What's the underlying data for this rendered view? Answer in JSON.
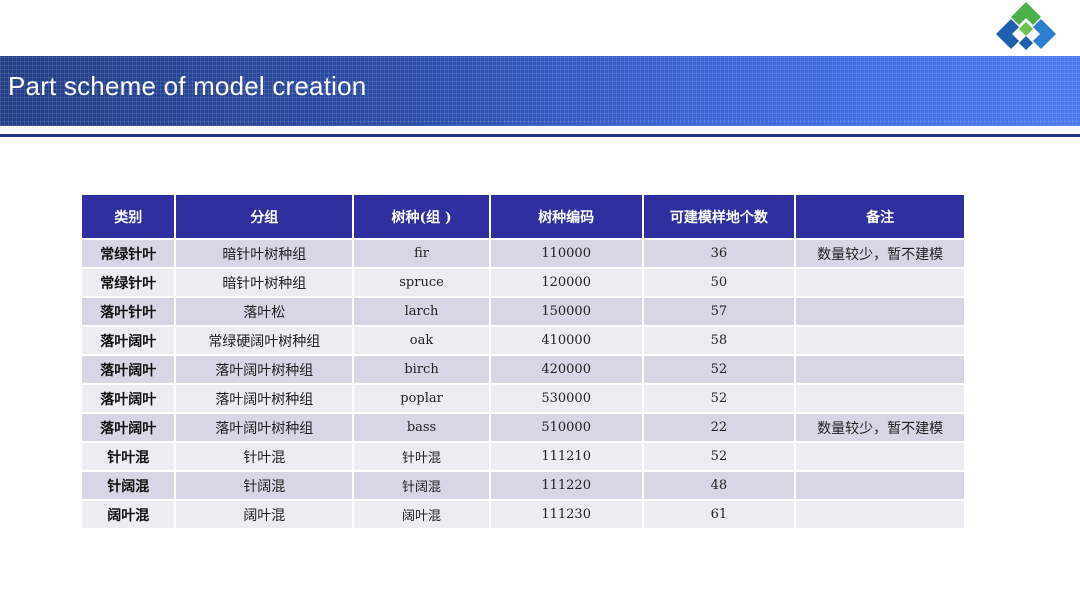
{
  "slide": {
    "title": "Part scheme of model creation"
  },
  "colors": {
    "title_bar": "#2a4aa4",
    "header_bg": "#2f2f9f",
    "row_odd": "#d6d6e4",
    "row_even": "#ececf2",
    "logo_green": "#4bb04a",
    "logo_blue": "#1f5fb0"
  },
  "table": {
    "headers": [
      "类别",
      "分组",
      "树种(组 )",
      "树种编码",
      "可建模样地个数",
      "备注"
    ],
    "rows": [
      [
        "常绿针叶",
        "暗针叶树种组",
        "fir",
        "110000",
        "36",
        "数量较少，暂不建模"
      ],
      [
        "常绿针叶",
        "暗针叶树种组",
        "spruce",
        "120000",
        "50",
        ""
      ],
      [
        "落叶针叶",
        "落叶松",
        "larch",
        "150000",
        "57",
        ""
      ],
      [
        "落叶阔叶",
        "常绿硬阔叶树种组",
        "oak",
        "410000",
        "58",
        ""
      ],
      [
        "落叶阔叶",
        "落叶阔叶树种组",
        "birch",
        "420000",
        "52",
        ""
      ],
      [
        "落叶阔叶",
        "落叶阔叶树种组",
        "poplar",
        "530000",
        "52",
        ""
      ],
      [
        "落叶阔叶",
        "落叶阔叶树种组",
        "bass",
        "510000",
        "22",
        "数量较少，暂不建模"
      ],
      [
        "针叶混",
        "针叶混",
        "针叶混",
        "111210",
        "52",
        ""
      ],
      [
        "针阔混",
        "针阔混",
        "针阔混",
        "111220",
        "48",
        ""
      ],
      [
        "阔叶混",
        "阔叶混",
        "阔叶混",
        "111230",
        "61",
        ""
      ]
    ]
  }
}
